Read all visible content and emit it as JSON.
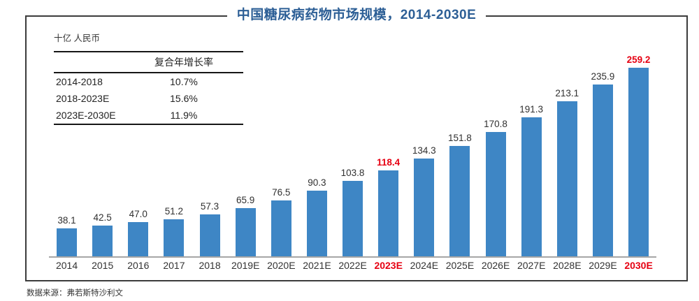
{
  "title": "中国糖尿病药物市场规模，2014-2030E",
  "unit_label": "十亿 人民币",
  "cagr_table": {
    "header": "复合年增长率",
    "rows": [
      {
        "period": "2014-2018",
        "value": "10.7%"
      },
      {
        "period": "2018-2023E",
        "value": "15.6%"
      },
      {
        "period": "2023E-2030E",
        "value": "11.9%"
      }
    ]
  },
  "chart_data": {
    "type": "bar",
    "title": "中国糖尿病药物市场规模，2014-2030E",
    "ylabel": "十亿 人民币",
    "xlabel": "",
    "categories": [
      "2014",
      "2015",
      "2016",
      "2017",
      "2018",
      "2019E",
      "2020E",
      "2021E",
      "2022E",
      "2023E",
      "2024E",
      "2025E",
      "2026E",
      "2027E",
      "2028E",
      "2029E",
      "2030E"
    ],
    "values": [
      38.1,
      42.5,
      47.0,
      51.2,
      57.3,
      65.9,
      76.5,
      90.3,
      103.8,
      118.4,
      134.3,
      151.8,
      170.8,
      191.3,
      213.1,
      235.9,
      259.2
    ],
    "highlighted_categories": [
      "2023E",
      "2030E"
    ],
    "ylim": [
      0,
      280
    ],
    "grid": false,
    "legend": "none",
    "bar_color": "#3e86c5",
    "highlight_label_color": "#e60012",
    "value_label_color": "#303030",
    "axis_line_color": "#a6a6a6"
  },
  "source": "数据来源：弗若斯特沙利文",
  "colors": {
    "title_blue": "#2d5f96",
    "frame_border": "#3c3c3c",
    "table_rule": "#161616"
  }
}
